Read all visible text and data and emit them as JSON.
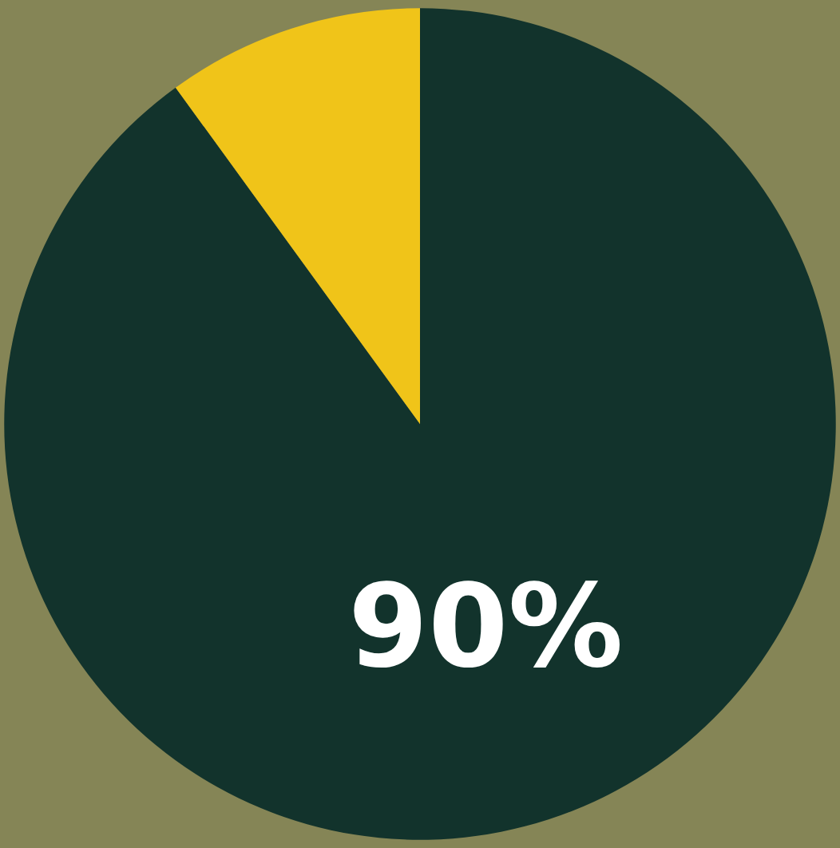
{
  "chart_data": {
    "type": "pie",
    "categories": [
      null,
      null
    ],
    "values": [
      90,
      10
    ],
    "colors": [
      "#12332c",
      "#f0c419"
    ],
    "value_labels": [
      "90%",
      null
    ]
  }
}
